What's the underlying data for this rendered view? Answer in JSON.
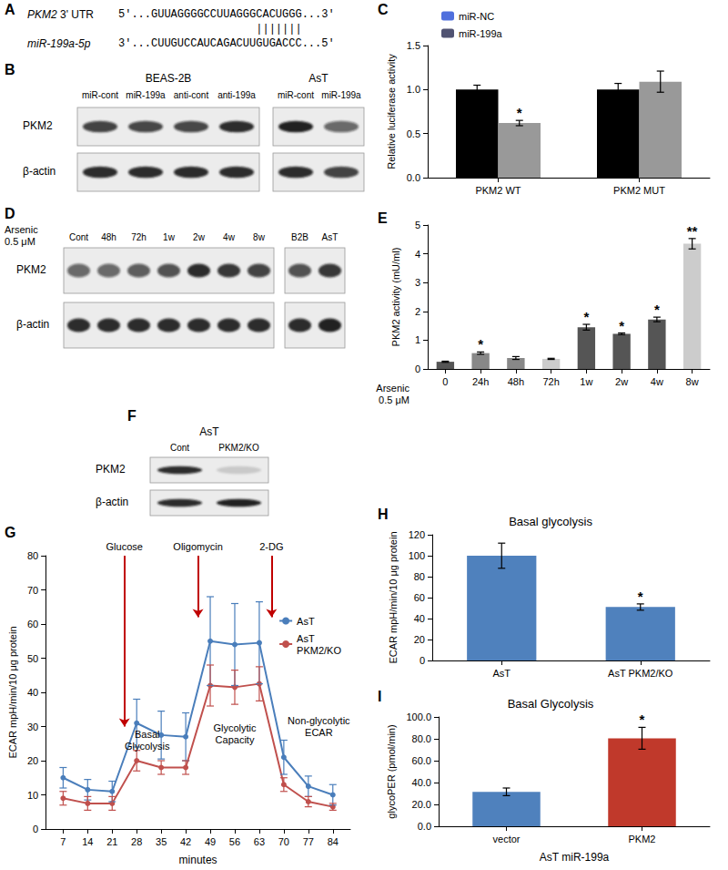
{
  "sequence_panel": {
    "panel": "A",
    "rows": [
      {
        "label": "PKM2 3' UTR",
        "prefix": "5'...",
        "sequence": "GUUAGGGGCCUUAGGGCACUGGG",
        "suffix": "...3'"
      },
      {
        "label": "miR-199a-5p",
        "prefix": "3'...",
        "sequence": "CUUGUCCAUCAGACUUGUGACCC",
        "suffix": "...5'"
      }
    ],
    "pair_line": "|||||||"
  },
  "blots": [
    {
      "panel": "B",
      "groups": [
        {
          "label": "BEAS-2B",
          "lanes": [
            "miR-cont",
            "miR-199a",
            "anti-cont",
            "anti-199a"
          ]
        },
        {
          "label": "AsT",
          "lanes": [
            "miR-cont",
            "miR-199a"
          ]
        }
      ],
      "rows": [
        {
          "label": "PKM2",
          "intensity": [
            0.8,
            0.75,
            0.75,
            0.9,
            0.95,
            0.6
          ]
        },
        {
          "label": "β-actin",
          "intensity": [
            0.9,
            0.9,
            0.9,
            0.9,
            0.9,
            0.8
          ]
        }
      ]
    },
    {
      "panel": "D",
      "side_label": "Arsenic\n0.5 μM",
      "groups": [
        {
          "lanes": [
            "Cont",
            "48h",
            "72h",
            "1w",
            "2w",
            "4w",
            "8w"
          ]
        },
        {
          "lanes": [
            "B2B",
            "AsT"
          ]
        }
      ],
      "rows": [
        {
          "label": "PKM2",
          "intensity": [
            0.6,
            0.6,
            0.65,
            0.7,
            0.9,
            0.85,
            0.8,
            0.7,
            0.85
          ]
        },
        {
          "label": "β-actin",
          "intensity": [
            0.9,
            0.9,
            0.9,
            0.9,
            0.9,
            0.9,
            0.9,
            0.9,
            0.95
          ]
        }
      ]
    },
    {
      "panel": "F",
      "groups": [
        {
          "label": "AsT",
          "lanes": [
            "Cont",
            "PKM2/KO"
          ]
        }
      ],
      "rows": [
        {
          "label": "PKM2",
          "intensity": [
            0.9,
            0.15
          ]
        },
        {
          "label": "β-actin",
          "intensity": [
            0.9,
            0.95
          ]
        }
      ]
    }
  ],
  "chart_data": [
    {
      "type": "bar",
      "panel": "C",
      "ylabel": "Relative luciferase activity",
      "categories": [
        "PKM2 WT",
        "PKM2 MUT"
      ],
      "series": [
        {
          "name": "miR-NC",
          "color": "#000000",
          "values": [
            1.0,
            1.0
          ],
          "errors": [
            0.05,
            0.07
          ]
        },
        {
          "name": "miR-199a",
          "color": "#999999",
          "values": [
            0.62,
            1.09
          ],
          "errors": [
            0.03,
            0.12
          ],
          "significance": [
            "*",
            null
          ]
        }
      ],
      "ylim": [
        0,
        1.5
      ],
      "yticks": [
        {
          "value": 0,
          "label": "0.0"
        },
        0.5,
        {
          "value": 1,
          "label": "1.0"
        },
        1.5
      ],
      "legend": "upper left",
      "grid": false
    },
    {
      "type": "bar",
      "panel": "E",
      "ylabel": "PKM2 activity (mU/ml)",
      "xlabel": "Arsenic\n0.5 μM",
      "categories": [
        "0",
        "24h",
        "48h",
        "72h",
        "1w",
        "2w",
        "4w",
        "8w"
      ],
      "values": [
        0.25,
        0.55,
        0.38,
        0.35,
        1.45,
        1.22,
        1.72,
        4.35
      ],
      "errors": [
        0.02,
        0.04,
        0.05,
        0.02,
        0.1,
        0.03,
        0.08,
        0.18
      ],
      "significance": [
        null,
        "*",
        null,
        null,
        "*",
        "*",
        "*",
        "**"
      ],
      "colors": [
        "#555555",
        "#888888",
        "#888888",
        "#cccccc",
        "#555555",
        "#555555",
        "#555555",
        "#cccccc"
      ],
      "ylim": [
        0,
        5
      ],
      "yticks": [
        0,
        1,
        2,
        3,
        4,
        5
      ],
      "grid": false
    },
    {
      "type": "line",
      "panel": "G",
      "ylabel": "ECAR mpH/min/10 μg protein",
      "xlabel": "minutes",
      "x": [
        7,
        14,
        21,
        28,
        35,
        42,
        49,
        56,
        63,
        70,
        77,
        84
      ],
      "series": [
        {
          "name": "AsT",
          "color": "#4a7ebb",
          "marker": "circle",
          "values": [
            15,
            11.5,
            11,
            31,
            27.5,
            27,
            55,
            54,
            54.5,
            21,
            12.5,
            10
          ],
          "errors": [
            3,
            3,
            3,
            7,
            7,
            7,
            13,
            12,
            12,
            5,
            3,
            3
          ]
        },
        {
          "name": "AsT PKM2/KO",
          "color": "#c0504d",
          "marker": "circle",
          "values": [
            9,
            7.5,
            7.5,
            20,
            18,
            18,
            42,
            41.5,
            42.5,
            13,
            8,
            6.5
          ],
          "errors": [
            2,
            2,
            2,
            3,
            2,
            2,
            6,
            5,
            5,
            2,
            1.5,
            1
          ]
        }
      ],
      "xlim": [
        2,
        89
      ],
      "xticks": [
        7,
        14,
        21,
        28,
        35,
        42,
        49,
        56,
        63,
        70,
        77,
        84
      ],
      "ylim": [
        0,
        80
      ],
      "yticks": [
        0,
        10,
        20,
        30,
        40,
        50,
        60,
        70,
        80
      ],
      "annotations": [
        {
          "text": "Glucose",
          "x": 24.5,
          "y_from": 80,
          "y_to": 30
        },
        {
          "text": "Oligomycin",
          "x": 45.5,
          "y_from": 80,
          "y_to": 62
        },
        {
          "text": "2-DG",
          "x": 66.5,
          "y_from": 80,
          "y_to": 62
        }
      ],
      "labels": [
        {
          "text": "Basal\nGlycolysis",
          "x": 31,
          "y": 26
        },
        {
          "text": "Glycolytic\nCapacity",
          "x": 56,
          "y": 28
        },
        {
          "text": "Non-glycolytic\nECAR",
          "x": 80,
          "y": 30
        }
      ],
      "legend": "upper right",
      "grid": false
    },
    {
      "type": "bar",
      "panel": "H",
      "title": "Basal glycolysis",
      "ylabel": "ECAR mpH/min/10 μg protein",
      "categories": [
        "AsT",
        "AsT PKM2/KO"
      ],
      "values": [
        100,
        51
      ],
      "errors": [
        12,
        3
      ],
      "significance": [
        null,
        "*"
      ],
      "color": "#4f81bd",
      "ylim": [
        0,
        120
      ],
      "yticks": [
        0,
        20,
        40,
        60,
        80,
        100,
        120
      ],
      "grid": false
    },
    {
      "type": "bar",
      "panel": "I",
      "title": "Basal Glycolysis",
      "ylabel": "glycoPER (pmol/min)",
      "xlabel": "AsT miR-199a",
      "categories": [
        "vector",
        "PKM2"
      ],
      "values": [
        31.5,
        80.5
      ],
      "errors": [
        3.5,
        10
      ],
      "significance": [
        null,
        "*"
      ],
      "colors": [
        "#4f81bd",
        "#c0392b"
      ],
      "ylim": [
        0,
        100
      ],
      "yticks": [
        {
          "value": 0,
          "label": "0.0"
        },
        {
          "value": 20,
          "label": "20.0"
        },
        {
          "value": 40,
          "label": "40.0"
        },
        {
          "value": 60,
          "label": "60.0"
        },
        {
          "value": 80,
          "label": "80.0"
        },
        {
          "value": 100,
          "label": "100.0"
        }
      ],
      "grid": false
    }
  ]
}
